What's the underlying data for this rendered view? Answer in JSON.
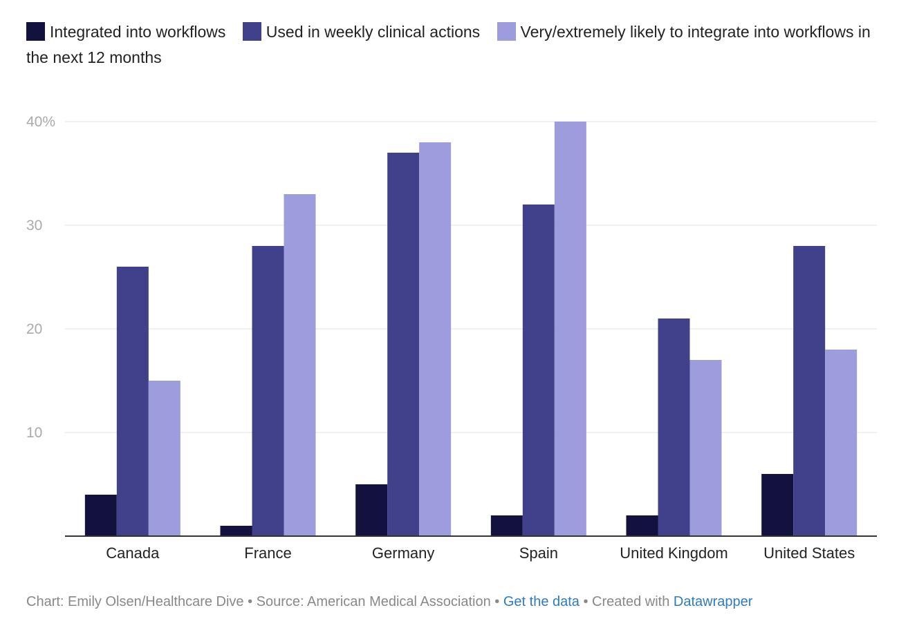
{
  "chart_data": {
    "type": "bar",
    "title": "",
    "xlabel": "",
    "ylabel": "",
    "ylim": [
      0,
      40
    ],
    "yticks": [
      10,
      20,
      30,
      40
    ],
    "ytick_labels": [
      "10",
      "20",
      "30",
      "40%"
    ],
    "grid": true,
    "legend_position": "top",
    "categories": [
      "Canada",
      "France",
      "Germany",
      "Spain",
      "United Kingdom",
      "United States"
    ],
    "series": [
      {
        "name": "Integrated into workflows",
        "color": "#13123e",
        "values": [
          4,
          1,
          5,
          2,
          2,
          6
        ]
      },
      {
        "name": "Used in weekly clinical actions",
        "color": "#41408b",
        "values": [
          26,
          28,
          37,
          32,
          21,
          28
        ]
      },
      {
        "name": "Very/extremely likely to integrate into workflows in the next 12 months",
        "color": "#9d9cdc",
        "values": [
          15,
          33,
          38,
          40,
          17,
          18
        ]
      }
    ]
  },
  "footer": {
    "credit": "Chart: Emily Olsen/Healthcare Dive • Source: American Medical Association • ",
    "get_data": "Get the data",
    "created": " • Created with ",
    "tool": "Datawrapper"
  }
}
